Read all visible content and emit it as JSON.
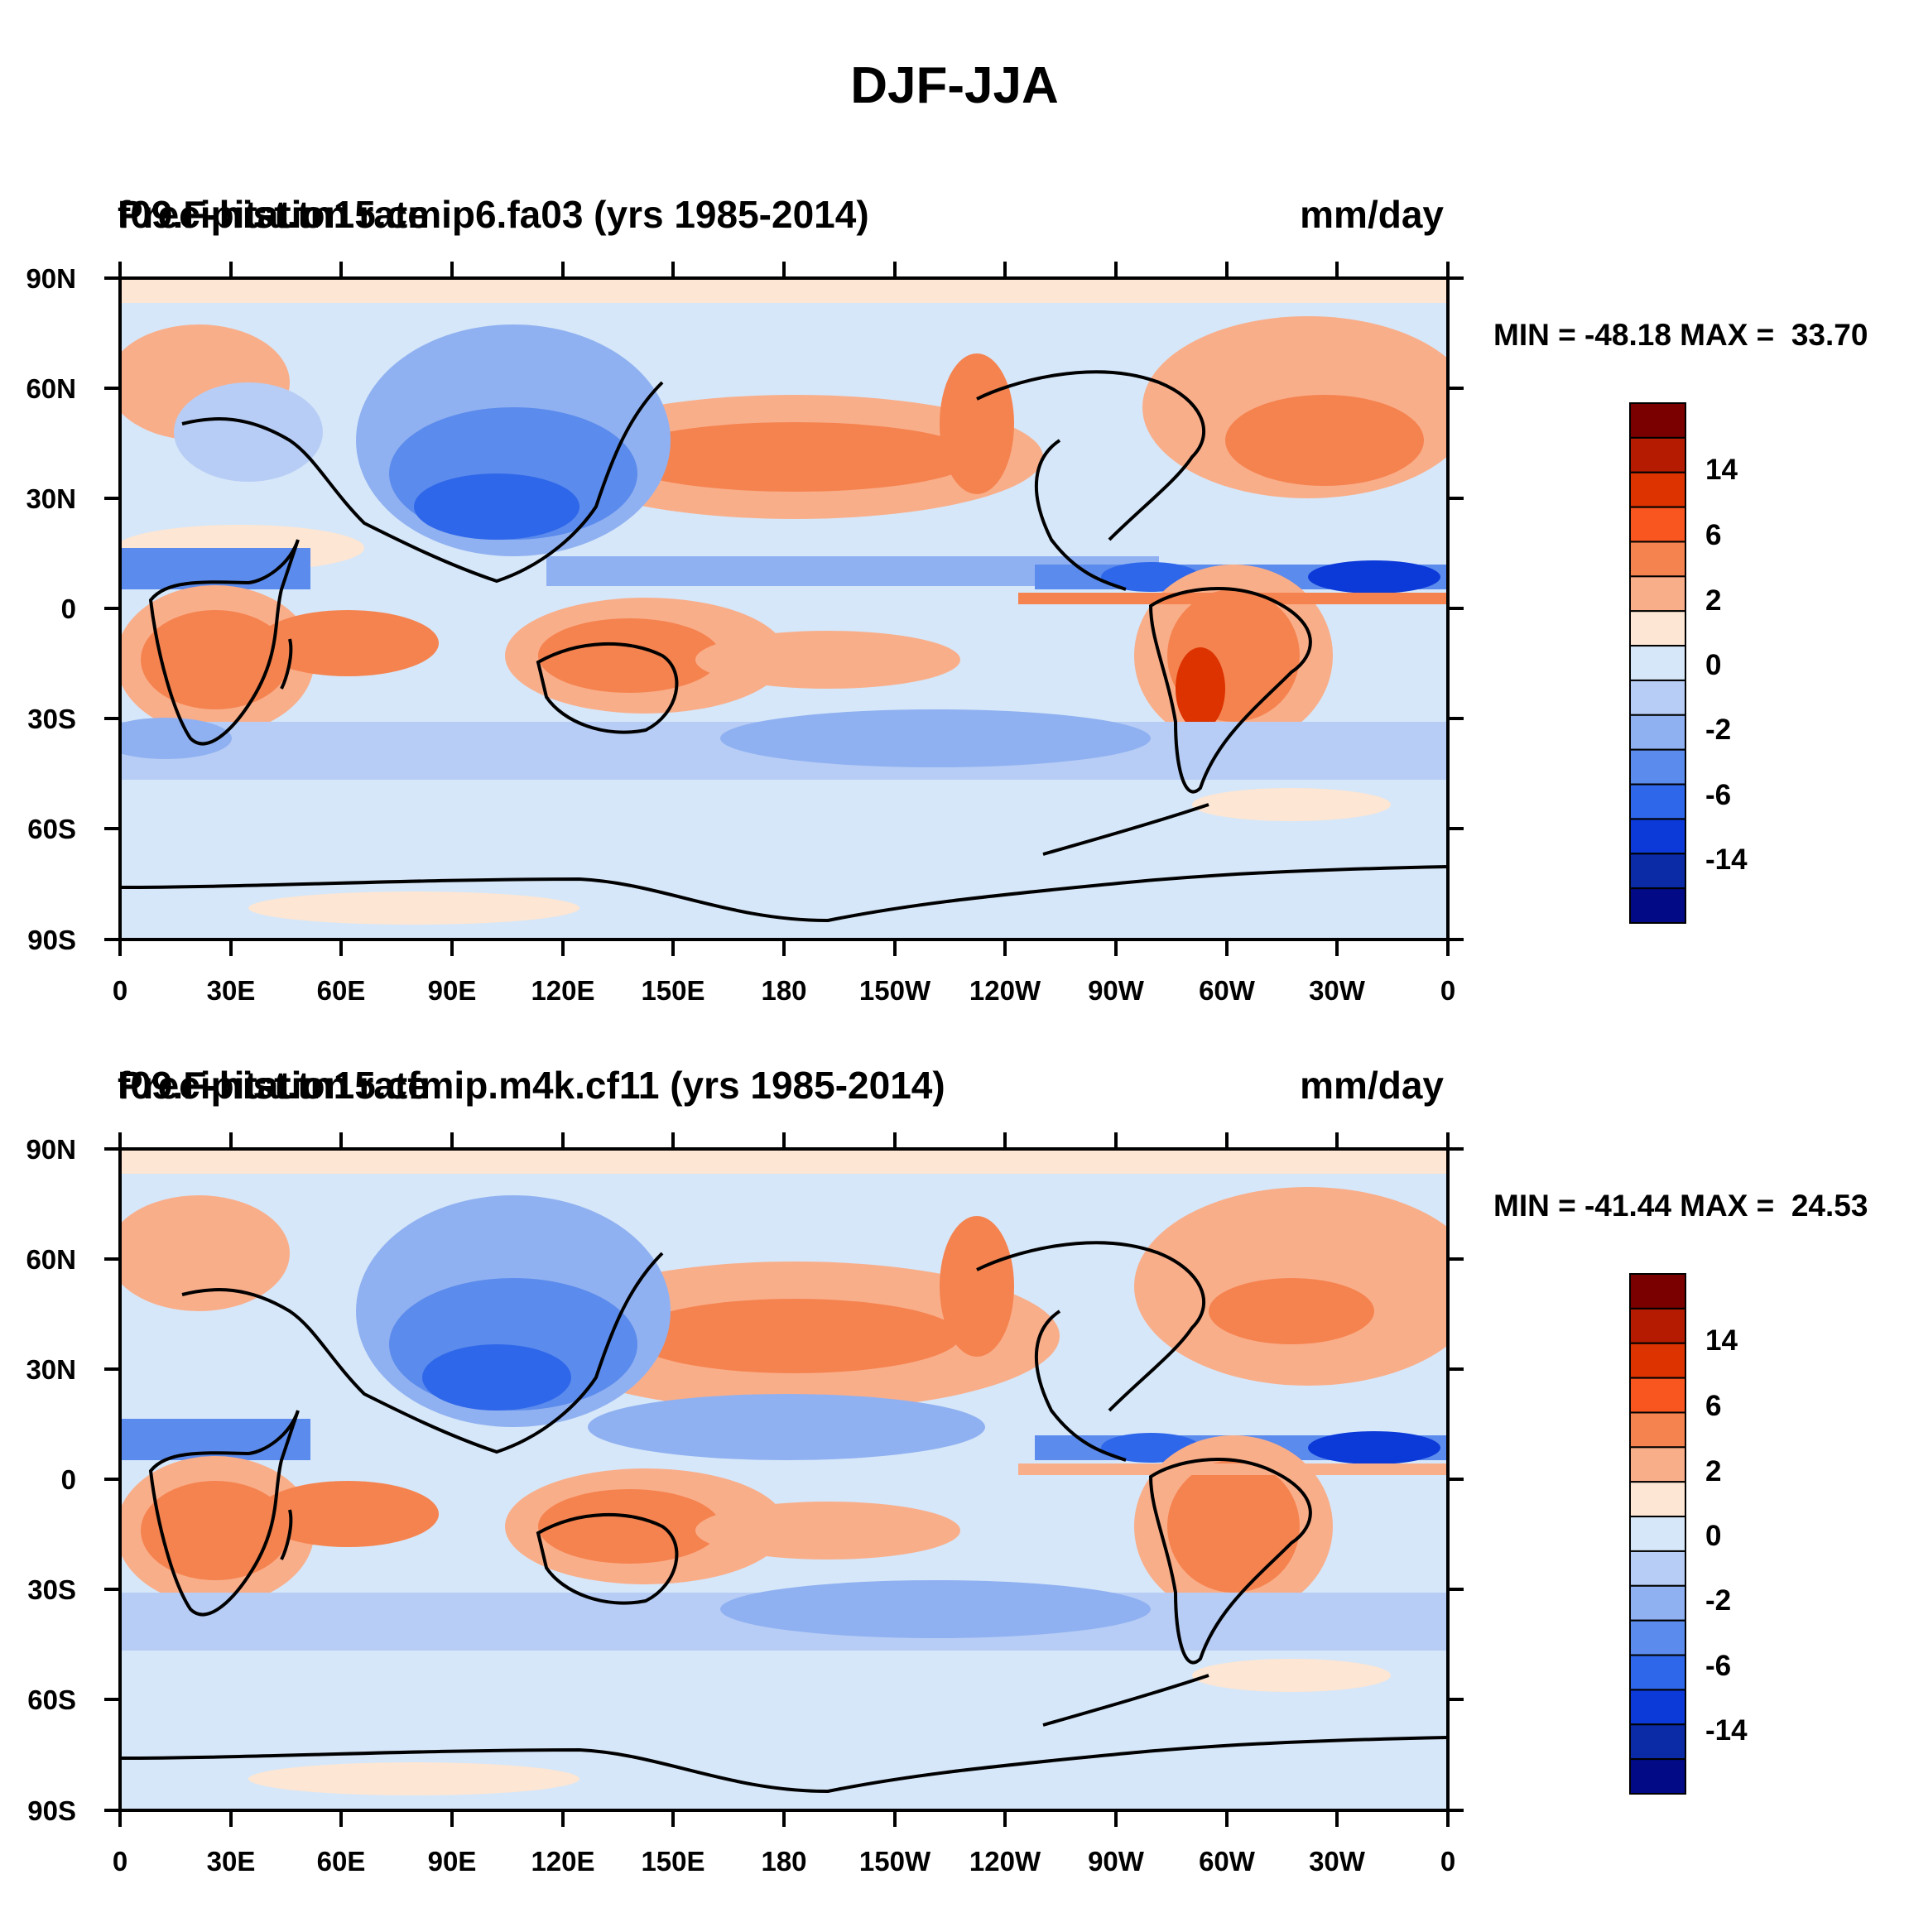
{
  "figure": {
    "title": "DJF-JJA",
    "left_string": "Precipitation rate",
    "units": "mm/day"
  },
  "panels": [
    {
      "case_title": "f09.F-hist.tn15.cmip6.fa03 (yrs 1985-2014)",
      "stats": "MIN = -48.18 MAX =  33.70"
    },
    {
      "case_title": "f09.F-hist.tn15.cfmip.m4k.cf11 (yrs 1985-2014)",
      "stats": "MIN = -41.44 MAX =  24.53"
    }
  ],
  "axes": {
    "lat_labels": [
      "90N",
      "60N",
      "30N",
      "0",
      "30S",
      "60S",
      "90S"
    ],
    "lon_labels": [
      "0",
      "30E",
      "60E",
      "90E",
      "120E",
      "150E",
      "180",
      "150W",
      "120W",
      "90W",
      "60W",
      "30W",
      "0"
    ]
  },
  "colorbar": {
    "labels": [
      "14",
      "6",
      "2",
      "0",
      "-2",
      "-6",
      "-14"
    ],
    "colors": [
      "#7a0000",
      "#b51b00",
      "#dc3300",
      "#f9551f",
      "#f5834f",
      "#f9ae8a",
      "#fde6d3",
      "#d6e7f9",
      "#b7cdf5",
      "#90b1f1",
      "#5b8bec",
      "#2f67ea",
      "#0c3ad9",
      "#0a2aa6",
      "#020a86"
    ]
  },
  "colors": {
    "background_ocean": "#d6e7f9",
    "coastline": "#000000"
  }
}
